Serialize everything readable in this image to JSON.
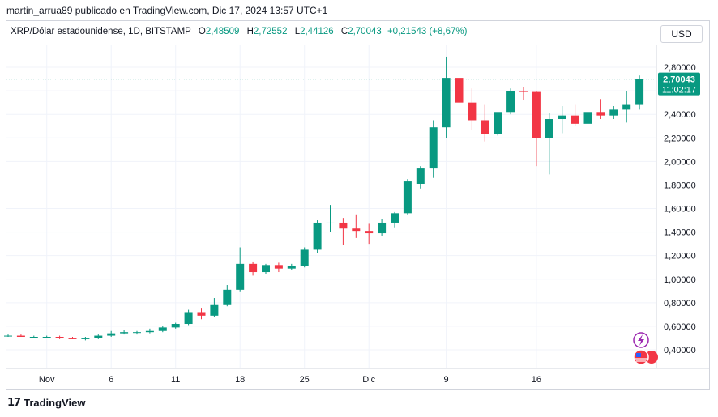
{
  "header": {
    "publisher_line": "martin_arrua89 publicado en TradingView.com, Dic 17, 2024 13:57 UTC+1"
  },
  "legend": {
    "symbol": "XRP/Dólar estadounidense, 1D, BITSTAMP",
    "open_label": "O",
    "open": "2,48509",
    "high_label": "H",
    "high": "2,72552",
    "low_label": "L",
    "low": "2,44126",
    "close_label": "C",
    "close": "2,70043",
    "change": "+0,21543 (+8,67%)"
  },
  "currency_button": "USD",
  "price_label": {
    "value": "2,70043",
    "countdown": "11:02:17"
  },
  "brand": {
    "name": "TradingView"
  },
  "colors": {
    "up": "#089981",
    "down": "#f23645",
    "grid": "#f0f3fa",
    "text": "#131722",
    "last_price_line": "#089981"
  },
  "icons": [
    "lightning-icon",
    "us-flag-icon"
  ],
  "chart_data": {
    "type": "candlestick",
    "y_ticks": [
      "2,80000",
      "2,60000",
      "2,40000",
      "2,20000",
      "2,00000",
      "1,80000",
      "1,60000",
      "1,40000",
      "1,20000",
      "1,00000",
      "0,80000",
      "0,60000",
      "0,40000"
    ],
    "y_tick_values": [
      2.8,
      2.6,
      2.4,
      2.2,
      2.0,
      1.8,
      1.6,
      1.4,
      1.2,
      1.0,
      0.8,
      0.6,
      0.4
    ],
    "x_ticks": [
      "Nov",
      "6",
      "11",
      "18",
      "25",
      "Dic",
      "9",
      "16"
    ],
    "x_tick_index": [
      3,
      8,
      13,
      18,
      23,
      28,
      34,
      41
    ],
    "candles": [
      {
        "o": 0.52,
        "h": 0.53,
        "l": 0.51,
        "c": 0.52
      },
      {
        "o": 0.52,
        "h": 0.53,
        "l": 0.51,
        "c": 0.51
      },
      {
        "o": 0.51,
        "h": 0.52,
        "l": 0.5,
        "c": 0.51
      },
      {
        "o": 0.51,
        "h": 0.52,
        "l": 0.5,
        "c": 0.51
      },
      {
        "o": 0.51,
        "h": 0.52,
        "l": 0.49,
        "c": 0.5
      },
      {
        "o": 0.5,
        "h": 0.51,
        "l": 0.49,
        "c": 0.49
      },
      {
        "o": 0.49,
        "h": 0.51,
        "l": 0.48,
        "c": 0.5
      },
      {
        "o": 0.5,
        "h": 0.53,
        "l": 0.49,
        "c": 0.52
      },
      {
        "o": 0.52,
        "h": 0.56,
        "l": 0.51,
        "c": 0.54
      },
      {
        "o": 0.54,
        "h": 0.57,
        "l": 0.53,
        "c": 0.55
      },
      {
        "o": 0.55,
        "h": 0.56,
        "l": 0.53,
        "c": 0.55
      },
      {
        "o": 0.55,
        "h": 0.58,
        "l": 0.54,
        "c": 0.56
      },
      {
        "o": 0.56,
        "h": 0.6,
        "l": 0.55,
        "c": 0.59
      },
      {
        "o": 0.59,
        "h": 0.63,
        "l": 0.58,
        "c": 0.62
      },
      {
        "o": 0.62,
        "h": 0.74,
        "l": 0.61,
        "c": 0.72
      },
      {
        "o": 0.72,
        "h": 0.75,
        "l": 0.66,
        "c": 0.69
      },
      {
        "o": 0.69,
        "h": 0.84,
        "l": 0.68,
        "c": 0.78
      },
      {
        "o": 0.78,
        "h": 0.95,
        "l": 0.77,
        "c": 0.91
      },
      {
        "o": 0.91,
        "h": 1.27,
        "l": 0.89,
        "c": 1.13
      },
      {
        "o": 1.13,
        "h": 1.15,
        "l": 1.03,
        "c": 1.06
      },
      {
        "o": 1.06,
        "h": 1.13,
        "l": 1.04,
        "c": 1.12
      },
      {
        "o": 1.12,
        "h": 1.14,
        "l": 1.06,
        "c": 1.09
      },
      {
        "o": 1.09,
        "h": 1.13,
        "l": 1.08,
        "c": 1.11
      },
      {
        "o": 1.11,
        "h": 1.27,
        "l": 1.1,
        "c": 1.25
      },
      {
        "o": 1.25,
        "h": 1.5,
        "l": 1.22,
        "c": 1.48
      },
      {
        "o": 1.48,
        "h": 1.63,
        "l": 1.4,
        "c": 1.48
      },
      {
        "o": 1.48,
        "h": 1.52,
        "l": 1.29,
        "c": 1.43
      },
      {
        "o": 1.43,
        "h": 1.55,
        "l": 1.35,
        "c": 1.41
      },
      {
        "o": 1.41,
        "h": 1.47,
        "l": 1.3,
        "c": 1.39
      },
      {
        "o": 1.39,
        "h": 1.51,
        "l": 1.37,
        "c": 1.48
      },
      {
        "o": 1.48,
        "h": 1.57,
        "l": 1.44,
        "c": 1.56
      },
      {
        "o": 1.56,
        "h": 1.85,
        "l": 1.55,
        "c": 1.83
      },
      {
        "o": 1.81,
        "h": 1.96,
        "l": 1.77,
        "c": 1.94
      },
      {
        "o": 1.94,
        "h": 2.35,
        "l": 1.86,
        "c": 2.29
      },
      {
        "o": 2.29,
        "h": 2.89,
        "l": 2.2,
        "c": 2.71
      },
      {
        "o": 2.71,
        "h": 2.9,
        "l": 2.21,
        "c": 2.5
      },
      {
        "o": 2.5,
        "h": 2.62,
        "l": 2.27,
        "c": 2.35
      },
      {
        "o": 2.35,
        "h": 2.48,
        "l": 2.17,
        "c": 2.23
      },
      {
        "o": 2.23,
        "h": 2.4,
        "l": 2.22,
        "c": 2.42
      },
      {
        "o": 2.42,
        "h": 2.62,
        "l": 2.4,
        "c": 2.6
      },
      {
        "o": 2.6,
        "h": 2.63,
        "l": 2.52,
        "c": 2.59
      },
      {
        "o": 2.59,
        "h": 2.6,
        "l": 1.96,
        "c": 2.2
      },
      {
        "o": 2.2,
        "h": 2.41,
        "l": 1.89,
        "c": 2.36
      },
      {
        "o": 2.36,
        "h": 2.47,
        "l": 2.24,
        "c": 2.39
      },
      {
        "o": 2.39,
        "h": 2.48,
        "l": 2.3,
        "c": 2.32
      },
      {
        "o": 2.32,
        "h": 2.48,
        "l": 2.28,
        "c": 2.42
      },
      {
        "o": 2.42,
        "h": 2.53,
        "l": 2.36,
        "c": 2.39
      },
      {
        "o": 2.39,
        "h": 2.47,
        "l": 2.36,
        "c": 2.44
      },
      {
        "o": 2.44,
        "h": 2.6,
        "l": 2.33,
        "c": 2.48
      },
      {
        "o": 2.48,
        "h": 2.73,
        "l": 2.44,
        "c": 2.7
      }
    ]
  }
}
